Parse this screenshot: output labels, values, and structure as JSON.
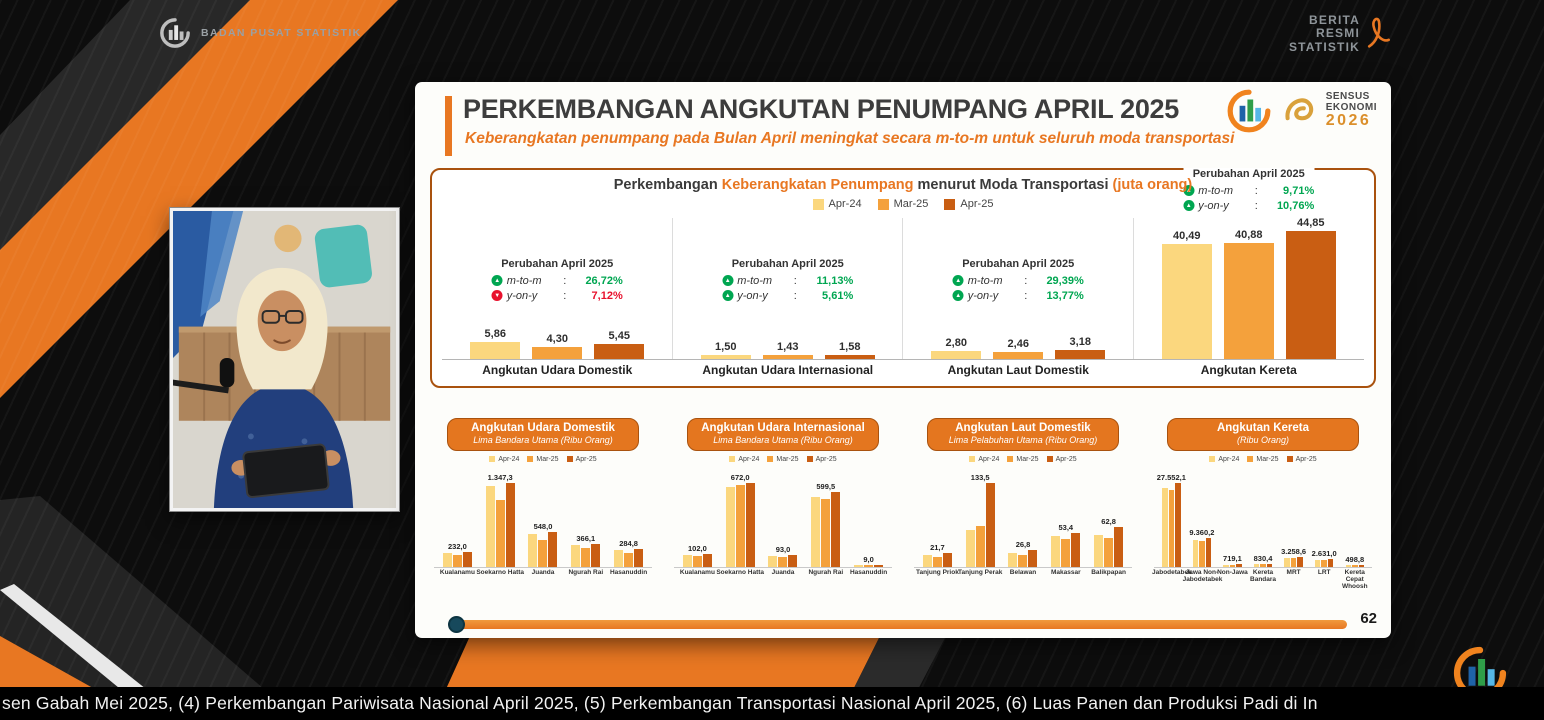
{
  "top_bar": {
    "bps_label": "BADAN PUSAT STATISTIK",
    "brs_lines": [
      "BERITA",
      "RESMI",
      "STATISTIK"
    ]
  },
  "slide": {
    "title": "PERKEMBANGAN ANGKUTAN PENUMPANG APRIL 2025",
    "subtitle": "Keberangkatan penumpang pada Bulan April meningkat secara m-to-m untuk seluruh moda transportasi",
    "sensus_logo": {
      "line1": "SENSUS",
      "line2": "EKONOMI",
      "year": "2026"
    },
    "page_number": "62"
  },
  "colors": {
    "apr24": "#FBD77E",
    "mar25": "#F4A13C",
    "apr25": "#C95E13",
    "accent_orange": "#E87722",
    "green": "#00A651",
    "red": "#E8112D"
  },
  "legend": [
    "Apr-24",
    "Mar-25",
    "Apr-25"
  ],
  "main_chart_title_parts": [
    {
      "text": "Perkembangan ",
      "orange": false
    },
    {
      "text": "Keberangkatan Penumpang",
      "orange": true
    },
    {
      "text": " menurut Moda Transportasi ",
      "orange": false
    },
    {
      "text": "(juta orang)",
      "orange": true
    }
  ],
  "ticker": "sen Gabah Mei 2025, (4) Perkembangan Pariwisata Nasional April 2025, (5) Perkembangan Transportasi Nasional April 2025, (6) Luas Panen dan Produksi Padi di In",
  "chart_data": [
    {
      "id": "main",
      "type": "bar",
      "title": "Perkembangan Keberangkatan Penumpang menurut Moda Transportasi (juta orang)",
      "unit": "juta orang",
      "legend_position": "top",
      "grid": false,
      "ylim": [
        0,
        46
      ],
      "categories": [
        "Angkutan Udara Domestik",
        "Angkutan Udara Internasional",
        "Angkutan Laut Domestik",
        "Angkutan Kereta"
      ],
      "series": [
        {
          "name": "Apr-24",
          "values": [
            5.86,
            1.5,
            2.8,
            40.49
          ]
        },
        {
          "name": "Mar-25",
          "values": [
            4.3,
            1.43,
            2.46,
            40.88
          ]
        },
        {
          "name": "Apr-25",
          "values": [
            5.45,
            1.58,
            3.18,
            44.85
          ]
        }
      ],
      "value_labels": [
        [
          "5,86",
          "4,30",
          "5,45"
        ],
        [
          "1,50",
          "1,43",
          "1,58"
        ],
        [
          "2,80",
          "2,46",
          "3,18"
        ],
        [
          "40,49",
          "40,88",
          "44,85"
        ]
      ],
      "changes": [
        {
          "title": "Perubahan April 2025",
          "rows": [
            {
              "label": "m-to-m",
              "value": "26,72%",
              "direction": "up"
            },
            {
              "label": "y-on-y",
              "value": "7,12%",
              "direction": "down"
            }
          ]
        },
        {
          "title": "Perubahan April 2025",
          "rows": [
            {
              "label": "m-to-m",
              "value": "11,13%",
              "direction": "up"
            },
            {
              "label": "y-on-y",
              "value": "5,61%",
              "direction": "up"
            }
          ]
        },
        {
          "title": "Perubahan April 2025",
          "rows": [
            {
              "label": "m-to-m",
              "value": "29,39%",
              "direction": "up"
            },
            {
              "label": "y-on-y",
              "value": "13,77%",
              "direction": "up"
            }
          ]
        },
        {
          "title": "Perubahan April 2025",
          "rows": [
            {
              "label": "m-to-m",
              "value": "9,71%",
              "direction": "up"
            },
            {
              "label": "y-on-y",
              "value": "10,76%",
              "direction": "up"
            }
          ]
        }
      ]
    },
    {
      "id": "udara-domestik",
      "type": "bar",
      "title": "Angkutan Udara Domestik",
      "subtitle": "Lima Bandara Utama (Ribu Orang)",
      "categories": [
        "Kualanamu",
        "Soekarno Hatta",
        "Juanda",
        "Ngurah Rai",
        "Hasanuddin"
      ],
      "series": [
        {
          "name": "Apr-24",
          "values": [
            225,
            1290,
            530,
            350,
            265
          ]
        },
        {
          "name": "Mar-25",
          "values": [
            185,
            1060,
            430,
            290,
            225
          ]
        },
        {
          "name": "Apr-25",
          "values": [
            232.0,
            1347.3,
            548.0,
            366.1,
            284.8
          ]
        }
      ],
      "group_labels": [
        "232,0",
        "1.347,3",
        "548,0",
        "366,1",
        "284,8"
      ]
    },
    {
      "id": "udara-internasional",
      "type": "bar",
      "title": "Angkutan Udara Internasional",
      "subtitle": "Lima Bandara Utama (Ribu Orang)",
      "categories": [
        "Kualanamu",
        "Soekarno Hatta",
        "Juanda",
        "Ngurah Rai",
        "Hasanuddin"
      ],
      "series": [
        {
          "name": "Apr-24",
          "values": [
            96,
            640,
            86,
            555,
            8
          ]
        },
        {
          "name": "Mar-25",
          "values": [
            88,
            655,
            80,
            540,
            7
          ]
        },
        {
          "name": "Apr-25",
          "values": [
            102.0,
            672.0,
            93.0,
            599.5,
            9.0
          ]
        }
      ],
      "group_labels": [
        "102,0",
        "672,0",
        "93,0",
        "599,5",
        "9,0"
      ]
    },
    {
      "id": "laut-domestik",
      "type": "bar",
      "title": "Angkutan Laut Domestik",
      "subtitle": "Lima Pelabuhan Utama (Ribu Orang)",
      "categories": [
        "Tanjung Priok",
        "Tanjung Perak",
        "Belawan",
        "Makassar",
        "Balikpapan"
      ],
      "series": [
        {
          "name": "Apr-24",
          "values": [
            18,
            58,
            22,
            48,
            50
          ]
        },
        {
          "name": "Mar-25",
          "values": [
            15,
            64,
            19,
            44,
            46
          ]
        },
        {
          "name": "Apr-25",
          "values": [
            21.7,
            133.5,
            26.8,
            53.4,
            62.8
          ]
        }
      ],
      "group_labels": [
        "21,7",
        "133,5",
        "26,8",
        "53,4",
        "62,8"
      ]
    },
    {
      "id": "kereta",
      "type": "bar",
      "title": "Angkutan Kereta",
      "subtitle": "(Ribu Orang)",
      "categories": [
        "Jabodetabek",
        "Jawa Non-Jabodetabek",
        "Non-Jawa",
        "Kereta Bandara",
        "MRT",
        "LRT",
        "Kereta Cepat Whoosh"
      ],
      "series": [
        {
          "name": "Apr-24",
          "values": [
            25800,
            8700,
            660,
            750,
            2950,
            2300,
            440
          ]
        },
        {
          "name": "Mar-25",
          "values": [
            25200,
            8400,
            630,
            720,
            2850,
            2250,
            430
          ]
        },
        {
          "name": "Apr-25",
          "values": [
            27552.1,
            9360.2,
            719.1,
            830.4,
            3258.6,
            2631.0,
            498.8
          ]
        }
      ],
      "group_labels": [
        "27.552,1",
        "9.360,2",
        "719,1",
        "830,4",
        "3.258,6",
        "2.631,0",
        "498,8"
      ]
    }
  ]
}
